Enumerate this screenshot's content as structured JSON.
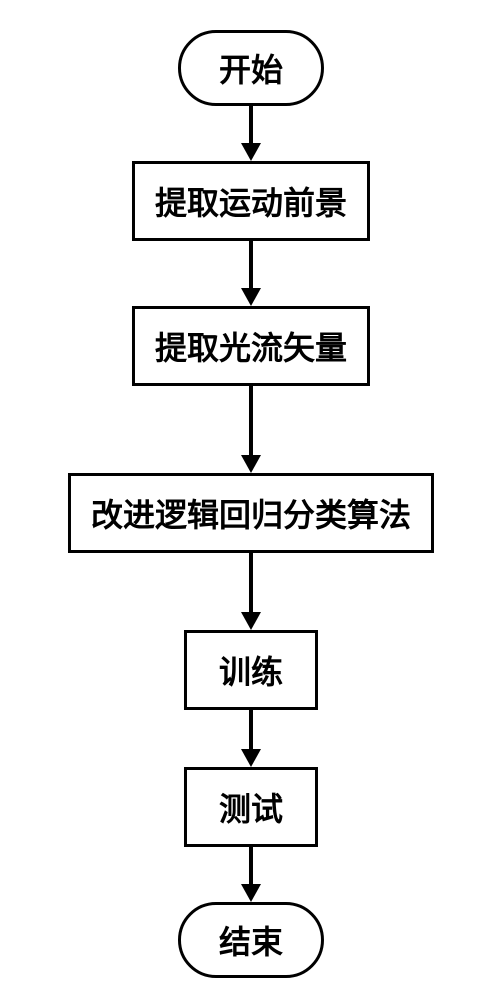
{
  "flowchart": {
    "type": "flowchart",
    "background_color": "#ffffff",
    "border_color": "#000000",
    "border_width": 3,
    "font_color": "#000000",
    "font_size": 32,
    "font_weight": "bold",
    "arrow_color": "#000000",
    "arrow_shaft_width": 4,
    "arrow_head_size": 18,
    "terminal_border_radius": 50,
    "nodes": [
      {
        "id": "start",
        "shape": "terminal",
        "label": "开始",
        "padding_x": 38
      },
      {
        "id": "step1",
        "shape": "process",
        "label": "提取运动前景",
        "padding_x": 20
      },
      {
        "id": "step2",
        "shape": "process",
        "label": "提取光流矢量",
        "padding_x": 20
      },
      {
        "id": "step3",
        "shape": "process",
        "label": "改进逻辑回归分类算法",
        "padding_x": 20
      },
      {
        "id": "step4",
        "shape": "process",
        "label": "训练",
        "padding_x": 32
      },
      {
        "id": "step5",
        "shape": "process",
        "label": "测试",
        "padding_x": 32
      },
      {
        "id": "end",
        "shape": "terminal",
        "label": "结束",
        "padding_x": 38
      }
    ],
    "edges": [
      {
        "from": "start",
        "to": "step1",
        "shaft_length": 38
      },
      {
        "from": "step1",
        "to": "step2",
        "shaft_length": 48
      },
      {
        "from": "step2",
        "to": "step3",
        "shaft_length": 70
      },
      {
        "from": "step3",
        "to": "step4",
        "shaft_length": 60
      },
      {
        "from": "step4",
        "to": "step5",
        "shaft_length": 40
      },
      {
        "from": "step5",
        "to": "end",
        "shaft_length": 38
      }
    ]
  }
}
